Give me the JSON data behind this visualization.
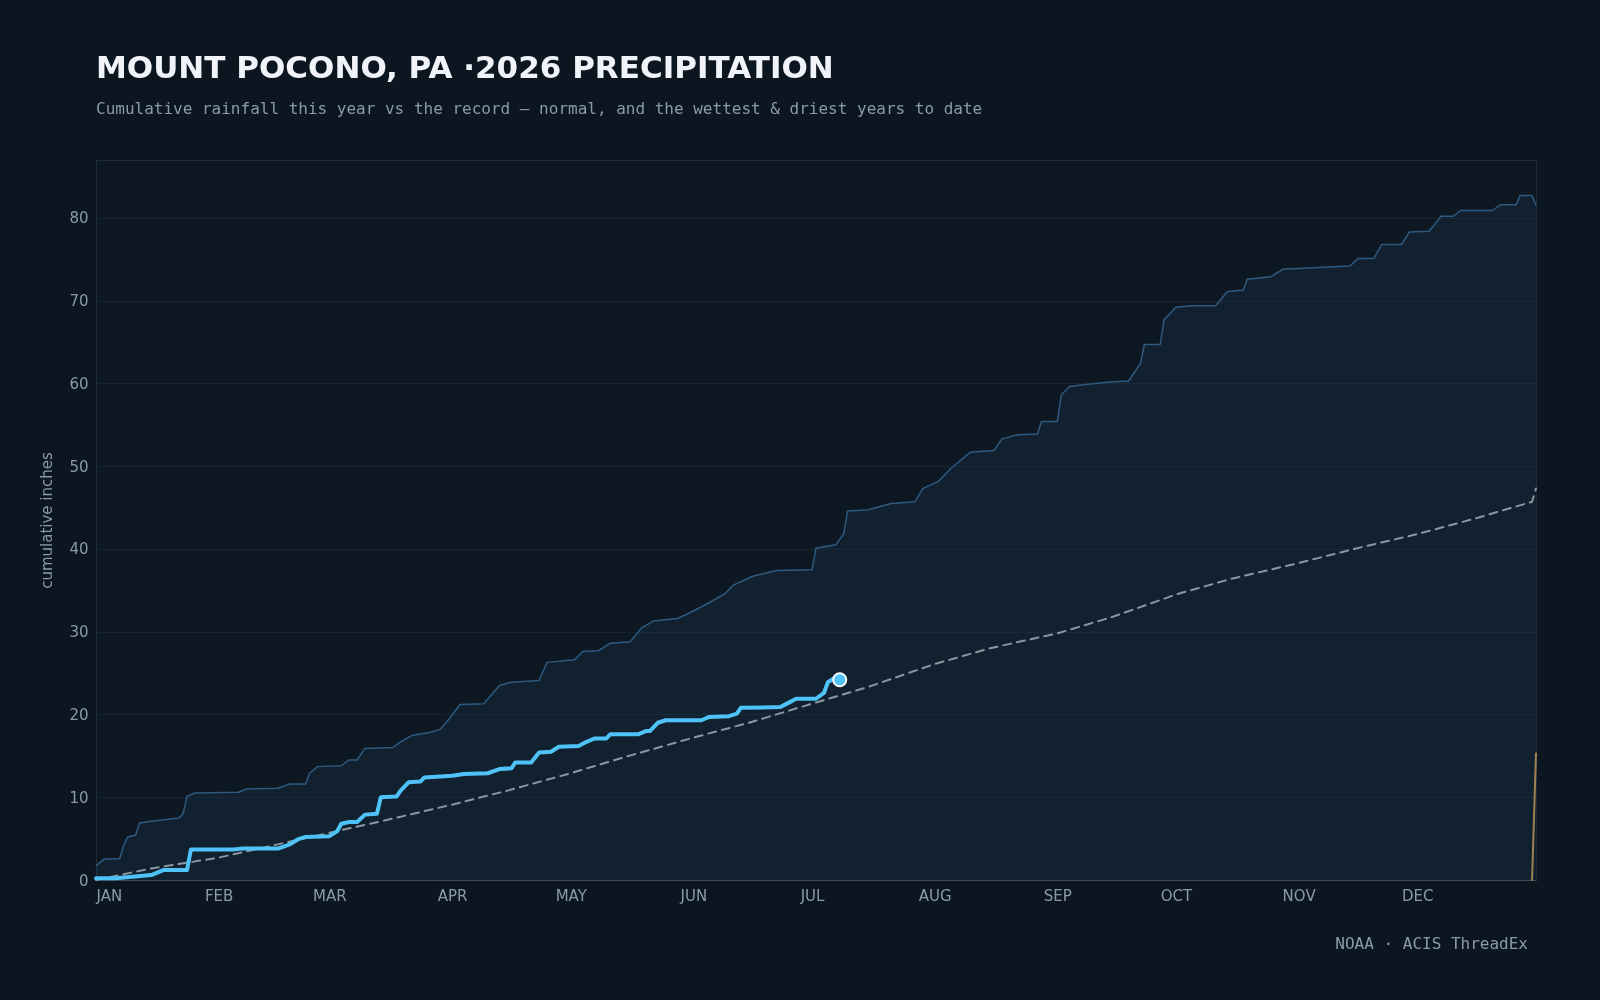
{
  "chart_data": {
    "type": "line",
    "title": "MOUNT POCONO, PA ·2026 PRECIPITATION",
    "subtitle": "Cumulative rainfall this year vs the record — normal, and the wettest & driest years to date",
    "ylabel": "cumulative inches",
    "annotations": [
      "NOAA · ACIS ThreadEx"
    ],
    "xlim": [
      "2026-01-01",
      "2026-12-31"
    ],
    "xticks": [
      {
        "value": "2026-01-01",
        "label": "JAN"
      },
      {
        "value": "2026-02-01",
        "label": "FEB"
      },
      {
        "value": "2026-03-01",
        "label": "MAR"
      },
      {
        "value": "2026-04-01",
        "label": "APR"
      },
      {
        "value": "2026-05-01",
        "label": "MAY"
      },
      {
        "value": "2026-06-01",
        "label": "JUN"
      },
      {
        "value": "2026-07-01",
        "label": "JUL"
      },
      {
        "value": "2026-08-01",
        "label": "AUG"
      },
      {
        "value": "2026-09-01",
        "label": "SEP"
      },
      {
        "value": "2026-10-01",
        "label": "OCT"
      },
      {
        "value": "2026-11-01",
        "label": "NOV"
      },
      {
        "value": "2026-12-01",
        "label": "DEC"
      }
    ],
    "ylim": [
      0,
      87
    ],
    "yticks": [
      0,
      10,
      20,
      30,
      40,
      50,
      60,
      70,
      80
    ],
    "grid": "y",
    "series": [
      {
        "type": "area",
        "color": "#2e5a80",
        "x": [
          "2026-01-01",
          "2026-01-02",
          "2026-01-03",
          "2026-01-07",
          "2026-01-08",
          "2026-01-09",
          "2026-01-11",
          "2026-01-12",
          "2026-01-15",
          "2026-01-22",
          "2026-01-23",
          "2026-01-24",
          "2026-01-26",
          "2026-02-06",
          "2026-02-08",
          "2026-02-16",
          "2026-02-19",
          "2026-02-23",
          "2026-02-24",
          "2026-02-26",
          "2026-03-04",
          "2026-03-06",
          "2026-03-08",
          "2026-03-10",
          "2026-03-17",
          "2026-03-19",
          "2026-03-22",
          "2026-03-26",
          "2026-03-29",
          "2026-03-31",
          "2026-04-03",
          "2026-04-09",
          "2026-04-13",
          "2026-04-16",
          "2026-04-23",
          "2026-04-25",
          "2026-05-02",
          "2026-05-04",
          "2026-05-08",
          "2026-05-11",
          "2026-05-16",
          "2026-05-19",
          "2026-05-22",
          "2026-05-28",
          "2026-06-01",
          "2026-06-05",
          "2026-06-09",
          "2026-06-11",
          "2026-06-16",
          "2026-06-22",
          "2026-07-01",
          "2026-07-02",
          "2026-07-07",
          "2026-07-09",
          "2026-07-10",
          "2026-07-15",
          "2026-07-21",
          "2026-07-27",
          "2026-07-29",
          "2026-08-02",
          "2026-08-05",
          "2026-08-10",
          "2026-08-16",
          "2026-08-18",
          "2026-08-22",
          "2026-08-27",
          "2026-08-28",
          "2026-09-01",
          "2026-09-02",
          "2026-09-04",
          "2026-09-07",
          "2026-09-15",
          "2026-09-19",
          "2026-09-22",
          "2026-09-23",
          "2026-09-27",
          "2026-09-28",
          "2026-10-01",
          "2026-10-05",
          "2026-10-11",
          "2026-10-14",
          "2026-10-18",
          "2026-10-19",
          "2026-10-25",
          "2026-10-28",
          "2026-11-06",
          "2026-11-14",
          "2026-11-16",
          "2026-11-20",
          "2026-11-22",
          "2026-11-27",
          "2026-11-29",
          "2026-12-04",
          "2026-12-07",
          "2026-12-10",
          "2026-12-12",
          "2026-12-20",
          "2026-12-22",
          "2026-12-26",
          "2026-12-27",
          "2026-12-30",
          "2026-12-31"
        ],
        "values": [
          1.7,
          2.1,
          2.5,
          2.6,
          4.2,
          5.2,
          5.4,
          6.9,
          7.1,
          7.5,
          8,
          10.1,
          10.5,
          10.6,
          11,
          11.1,
          11.6,
          11.6,
          12.9,
          13.7,
          13.8,
          14.5,
          14.5,
          15.9,
          16,
          16.7,
          17.5,
          17.8,
          18.2,
          19.3,
          21.2,
          21.3,
          23.5,
          23.9,
          24.1,
          26.3,
          26.6,
          27.6,
          27.7,
          28.6,
          28.8,
          30.5,
          31.3,
          31.6,
          32.5,
          33.5,
          34.6,
          35.6,
          36.7,
          37.4,
          37.5,
          40.1,
          40.5,
          41.8,
          44.6,
          44.7,
          45.5,
          45.7,
          47.3,
          48.2,
          49.7,
          51.7,
          51.9,
          53.3,
          53.8,
          53.9,
          55.4,
          55.4,
          58.6,
          59.6,
          59.8,
          60.2,
          60.3,
          62.4,
          64.7,
          64.7,
          67.7,
          69.2,
          69.4,
          69.4,
          71.1,
          71.3,
          72.6,
          72.9,
          73.8,
          74,
          74.2,
          75.1,
          75.1,
          76.8,
          76.8,
          78.3,
          78.4,
          80.2,
          80.2,
          80.9,
          80.9,
          81.6,
          81.6,
          82.7,
          82.7,
          81.5
        ]
      },
      {
        "type": "line",
        "color": "#8a96a0",
        "line_style": "dashed",
        "x": [
          "2026-01-01",
          "2026-01-15",
          "2026-02-01",
          "2026-02-15",
          "2026-03-01",
          "2026-03-15",
          "2026-04-01",
          "2026-04-15",
          "2026-05-01",
          "2026-05-15",
          "2026-06-01",
          "2026-06-15",
          "2026-07-01",
          "2026-07-15",
          "2026-08-01",
          "2026-08-15",
          "2026-09-01",
          "2026-09-15",
          "2026-10-01",
          "2026-10-15",
          "2026-11-01",
          "2026-11-15",
          "2026-12-01",
          "2026-12-15",
          "2026-12-30",
          "2026-12-31"
        ],
        "values": [
          0,
          1.4,
          2.7,
          4.2,
          5.7,
          7.2,
          9.1,
          10.8,
          12.9,
          14.9,
          17.2,
          19,
          21.3,
          23.3,
          26.1,
          28,
          29.8,
          31.8,
          34.5,
          36.4,
          38.3,
          40,
          41.8,
          43.6,
          45.7,
          47.3
        ]
      },
      {
        "type": "line",
        "color": "#a08050",
        "x": [
          "2026-12-30",
          "2026-12-31"
        ],
        "values": [
          0,
          15.3
        ]
      },
      {
        "type": "line",
        "color": "#4fc3f7",
        "x": [
          "2026-01-01",
          "2026-01-06",
          "2026-01-15",
          "2026-01-18",
          "2026-01-24",
          "2026-01-25",
          "2026-02-05",
          "2026-02-07",
          "2026-02-16",
          "2026-02-19",
          "2026-02-21",
          "2026-02-23",
          "2026-03-01",
          "2026-03-03",
          "2026-03-04",
          "2026-03-06",
          "2026-03-08",
          "2026-03-10",
          "2026-03-13",
          "2026-03-14",
          "2026-03-18",
          "2026-03-19",
          "2026-03-21",
          "2026-03-24",
          "2026-03-25",
          "2026-04-01",
          "2026-04-04",
          "2026-04-10",
          "2026-04-13",
          "2026-04-16",
          "2026-04-17",
          "2026-04-21",
          "2026-04-23",
          "2026-04-26",
          "2026-04-28",
          "2026-05-03",
          "2026-05-05",
          "2026-05-07",
          "2026-05-10",
          "2026-05-11",
          "2026-05-18",
          "2026-05-20",
          "2026-05-21",
          "2026-05-23",
          "2026-05-25",
          "2026-06-03",
          "2026-06-05",
          "2026-06-10",
          "2026-06-12",
          "2026-06-13",
          "2026-06-23",
          "2026-06-25",
          "2026-06-27",
          "2026-07-02",
          "2026-07-04",
          "2026-07-05",
          "2026-07-07",
          "2026-07-08"
        ],
        "values": [
          0.2,
          0.2,
          0.6,
          1.2,
          1.2,
          3.7,
          3.7,
          3.8,
          3.8,
          4.3,
          4.9,
          5.2,
          5.3,
          5.9,
          6.8,
          7,
          7,
          7.9,
          8,
          10,
          10.1,
          10.8,
          11.8,
          11.9,
          12.4,
          12.6,
          12.8,
          12.9,
          13.4,
          13.5,
          14.2,
          14.2,
          15.4,
          15.5,
          16.1,
          16.2,
          16.7,
          17.1,
          17.1,
          17.6,
          17.6,
          18,
          18,
          19,
          19.3,
          19.3,
          19.7,
          19.8,
          20.1,
          20.8,
          20.9,
          21.4,
          21.9,
          21.9,
          22.6,
          23.9,
          24.5,
          24.2
        ]
      },
      {
        "type": "scatter",
        "marker": "circle",
        "color": "#4fc3f7",
        "x": [
          "2026-07-08"
        ],
        "values": [
          24.2
        ]
      }
    ]
  }
}
